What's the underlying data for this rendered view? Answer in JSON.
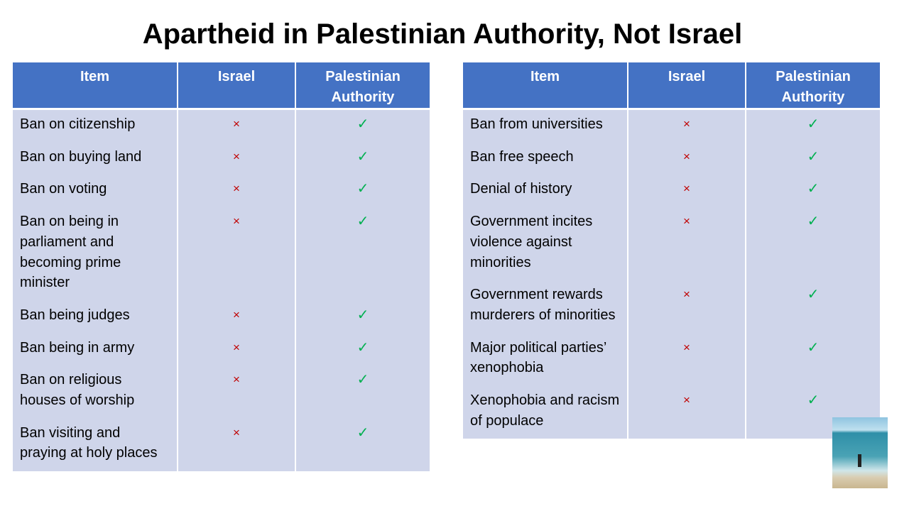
{
  "title": "Apartheid in Palestinian Authority, Not Israel",
  "tables": [
    {
      "header": [
        "Item",
        "Israel",
        "Palestinian Authority"
      ],
      "rows": [
        [
          "Ban on citizenship",
          "×",
          "✓"
        ],
        [
          "Ban on buying land",
          "×",
          "✓"
        ],
        [
          "Ban on voting",
          "×",
          "✓"
        ],
        [
          "Ban on being in parliament and becoming prime minister",
          "×",
          "✓"
        ],
        [
          "Ban being judges",
          "×",
          "✓"
        ],
        [
          "Ban being in army",
          "×",
          "✓"
        ],
        [
          "Ban on religious houses of worship",
          "×",
          "✓"
        ],
        [
          "Ban visiting and praying at holy places",
          "×",
          "✓"
        ]
      ]
    },
    {
      "header": [
        "Item",
        "Israel",
        "Palestinian Authority"
      ],
      "rows": [
        [
          "Ban from universities",
          "×",
          "✓"
        ],
        [
          "Ban free speech",
          "×",
          "✓"
        ],
        [
          "Denial of history",
          "×",
          "✓"
        ],
        [
          "Government incites violence against minorities",
          "×",
          "✓"
        ],
        [
          "Government rewards murderers of minorities",
          "×",
          "✓"
        ],
        [
          "Major political parties’ xenophobia",
          "×",
          "✓"
        ],
        [
          "Xenophobia and racism of populace",
          "×",
          "✓"
        ]
      ]
    }
  ]
}
